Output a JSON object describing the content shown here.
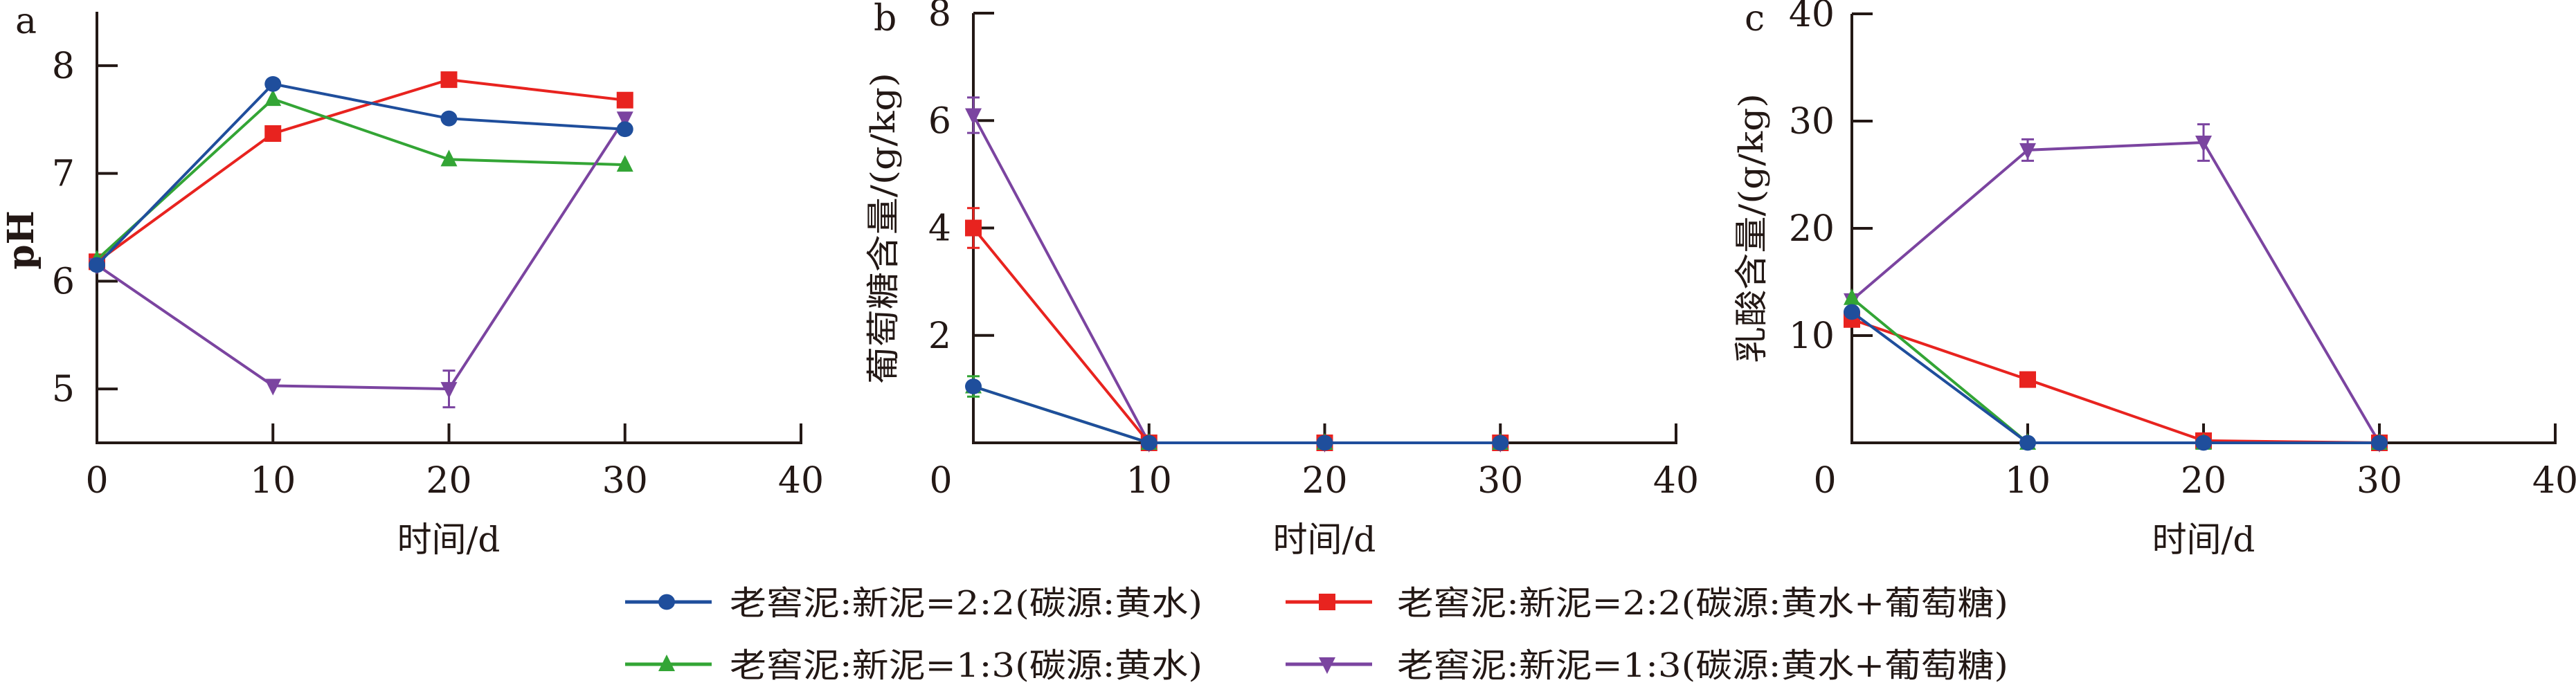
{
  "colors": {
    "s1": "#1f4e9c",
    "s2": "#e8231f",
    "s3": "#33a535",
    "s4": "#7b44a0",
    "axis": "#231815"
  },
  "legend": {
    "items": [
      {
        "label": "老窖泥:新泥=2:2(碳源:黄水)",
        "marker": "circle",
        "color": "#1f4e9c"
      },
      {
        "label": "老窖泥:新泥=2:2(碳源:黄水+葡萄糖)",
        "marker": "square",
        "color": "#e8231f"
      },
      {
        "label": "老窖泥:新泥=1:3(碳源:黄水)",
        "marker": "triangle-up",
        "color": "#33a535"
      },
      {
        "label": "老窖泥:新泥=1:3(碳源:黄水+葡萄糖)",
        "marker": "triangle-down",
        "color": "#7b44a0"
      }
    ]
  },
  "chart_data": [
    {
      "type": "line",
      "panel": "a",
      "xlabel": "时间/d",
      "ylabel": "pH",
      "xlim": [
        0,
        40
      ],
      "ylim": [
        4.5,
        8.5
      ],
      "xticks": [
        0,
        10,
        20,
        30,
        40
      ],
      "yticks": [
        5,
        6,
        7,
        8
      ],
      "x": [
        0,
        10,
        20,
        30
      ],
      "series": [
        {
          "name": "老窖泥:新泥=2:2(碳源:黄水+葡萄糖)",
          "values": [
            6.18,
            7.37,
            7.87,
            7.68
          ],
          "errors": [
            0,
            0,
            0,
            0
          ]
        },
        {
          "name": "老窖泥:新泥=1:3(碳源:黄水)",
          "values": [
            6.2,
            7.69,
            7.13,
            7.08
          ],
          "errors": [
            0,
            0,
            0,
            0
          ]
        },
        {
          "name": "老窖泥:新泥=1:3(碳源:黄水+葡萄糖)",
          "values": [
            6.15,
            5.03,
            5.0,
            7.51
          ],
          "errors": [
            0,
            0,
            0.17,
            0
          ]
        },
        {
          "name": "老窖泥:新泥=2:2(碳源:黄水)",
          "values": [
            6.15,
            7.83,
            7.51,
            7.41
          ],
          "errors": [
            0,
            0,
            0,
            0
          ]
        }
      ]
    },
    {
      "type": "line",
      "panel": "b",
      "xlabel": "时间/d",
      "ylabel": "葡萄糖含量/(g/kg)",
      "xlim": [
        0,
        40
      ],
      "ylim": [
        0,
        8
      ],
      "xticks": [
        0,
        10,
        20,
        30,
        40
      ],
      "yticks": [
        2,
        4,
        6,
        8
      ],
      "x": [
        0,
        10,
        20,
        30
      ],
      "series": [
        {
          "name": "老窖泥:新泥=1:3(碳源:黄水+葡萄糖)",
          "values": [
            6.1,
            0,
            0,
            0
          ],
          "errors": [
            0.33,
            0,
            0,
            0
          ]
        },
        {
          "name": "老窖泥:新泥=2:2(碳源:黄水+葡萄糖)",
          "values": [
            4.0,
            0,
            0,
            0
          ],
          "errors": [
            0.37,
            0,
            0,
            0
          ]
        },
        {
          "name": "老窖泥:新泥=1:3(碳源:黄水)",
          "values": [
            1.05,
            0,
            0,
            0
          ],
          "errors": [
            0.19,
            0,
            0,
            0
          ]
        },
        {
          "name": "老窖泥:新泥=2:2(碳源:黄水)",
          "values": [
            1.05,
            0,
            0,
            0
          ],
          "errors": [
            0,
            0,
            0,
            0
          ]
        }
      ]
    },
    {
      "type": "line",
      "panel": "c",
      "xlabel": "时间/d",
      "ylabel": "乳酸含量/(g/kg)",
      "xlim": [
        0,
        40
      ],
      "ylim": [
        0,
        40
      ],
      "xticks": [
        0,
        10,
        20,
        30,
        40
      ],
      "yticks": [
        10,
        20,
        30,
        40
      ],
      "x": [
        0,
        10,
        20,
        30
      ],
      "series": [
        {
          "name": "老窖泥:新泥=1:3(碳源:黄水+葡萄糖)",
          "values": [
            13.3,
            27.3,
            28.0,
            0
          ],
          "errors": [
            0,
            1.0,
            1.7,
            0
          ]
        },
        {
          "name": "老窖泥:新泥=2:2(碳源:黄水+葡萄糖)",
          "values": [
            11.5,
            5.9,
            0.2,
            0
          ],
          "errors": [
            0,
            0,
            0,
            0
          ]
        },
        {
          "name": "老窖泥:新泥=1:3(碳源:黄水)",
          "values": [
            13.5,
            0,
            0,
            0
          ],
          "errors": [
            0,
            0,
            0,
            0
          ]
        },
        {
          "name": "老窖泥:新泥=2:2(碳源:黄水)",
          "values": [
            12.2,
            0,
            0,
            0
          ],
          "errors": [
            0,
            0,
            0,
            0
          ]
        }
      ]
    }
  ]
}
